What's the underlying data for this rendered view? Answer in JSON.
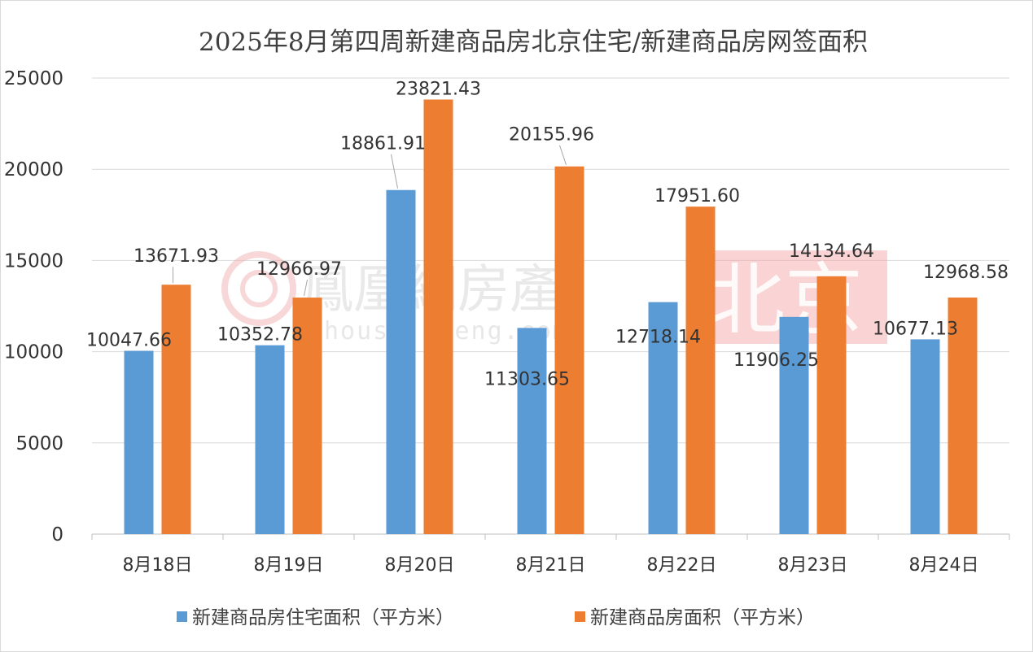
{
  "chart_data": {
    "type": "bar",
    "title": "2025年8月第四周新建商品房北京住宅/新建商品房网签面积",
    "categories": [
      "8月18日",
      "8月19日",
      "8月20日",
      "8月21日",
      "8月22日",
      "8月23日",
      "8月24日"
    ],
    "series": [
      {
        "name": "新建商品房住宅面积（平方米）",
        "color": "#5b9bd5",
        "values": [
          10047.66,
          10352.78,
          18861.91,
          11303.65,
          12718.14,
          11906.25,
          10677.13
        ],
        "labels": [
          "10047.66",
          "10352.78",
          "18861.91",
          "11303.65",
          "12718.14",
          "11906.25",
          "10677.13"
        ]
      },
      {
        "name": "新建商品房面积（平方米）",
        "color": "#ed7d31",
        "values": [
          13671.93,
          12966.97,
          23821.43,
          20155.96,
          17951.6,
          14134.64,
          12968.58
        ],
        "labels": [
          "13671.93",
          "12966.97",
          "23821.43",
          "20155.96",
          "17951.60",
          "14134.64",
          "12968.58"
        ]
      }
    ],
    "ylim": [
      0,
      25000
    ],
    "yticks": [
      "0",
      "5000",
      "10000",
      "15000",
      "20000",
      "25000"
    ],
    "grid": true,
    "legend": "bottom"
  },
  "watermark": {
    "brand": "鳳凰網房產",
    "url": "house.ifeng.com",
    "city": "北京",
    "accent": "#f08080"
  }
}
